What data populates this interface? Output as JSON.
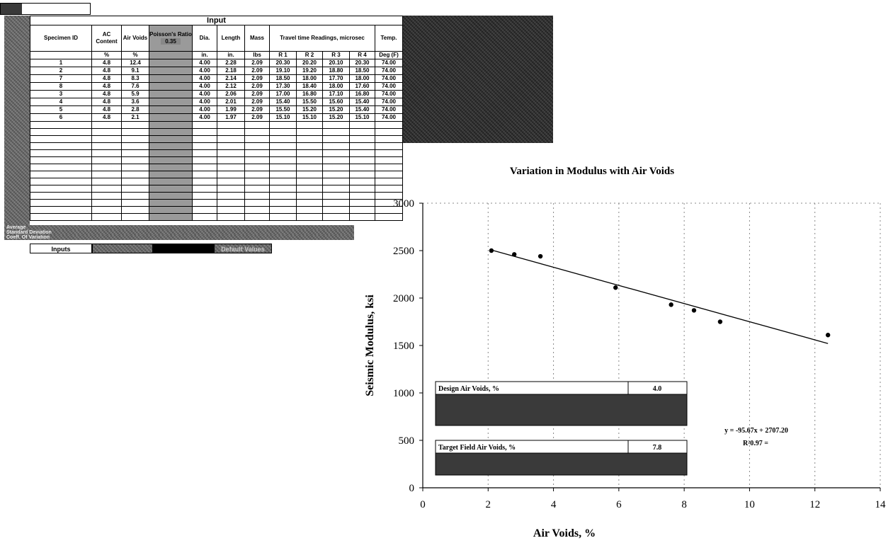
{
  "spreadsheet": {
    "input_title": "Input",
    "headers": {
      "specimen_id": "Specimen ID",
      "ac_content": "AC Content",
      "air_voids": "Air Voids",
      "poissons_ratio": "Poisson's Ratio",
      "poissons_value": "0.35",
      "dia": "Dia.",
      "length": "Length",
      "mass": "Mass",
      "travel_time": "Travel time Readings, microsec",
      "temp": "Temp."
    },
    "units": {
      "ac_content": "%",
      "air_voids": "%",
      "dia": "in.",
      "length": "in.",
      "mass": "lbs",
      "r1": "R 1",
      "r2": "R 2",
      "r3": "R 3",
      "r4": "R 4",
      "temp": "Deg (F)"
    },
    "rows": [
      [
        "1",
        "4.8",
        "12.4",
        "4.00",
        "2.28",
        "2.09",
        "20.30",
        "20.20",
        "20.10",
        "20.30",
        "74.00"
      ],
      [
        "2",
        "4.8",
        "9.1",
        "4.00",
        "2.18",
        "2.09",
        "19.10",
        "19.20",
        "18.80",
        "18.50",
        "74.00"
      ],
      [
        "7",
        "4.8",
        "8.3",
        "4.00",
        "2.14",
        "2.09",
        "18.50",
        "18.00",
        "17.70",
        "18.00",
        "74.00"
      ],
      [
        "8",
        "4.8",
        "7.6",
        "4.00",
        "2.12",
        "2.09",
        "17.30",
        "18.40",
        "18.00",
        "17.60",
        "74.00"
      ],
      [
        "3",
        "4.8",
        "5.9",
        "4.00",
        "2.06",
        "2.09",
        "17.00",
        "16.80",
        "17.10",
        "16.80",
        "74.00"
      ],
      [
        "4",
        "4.8",
        "3.6",
        "4.00",
        "2.01",
        "2.09",
        "15.40",
        "15.50",
        "15.60",
        "15.40",
        "74.00"
      ],
      [
        "5",
        "4.8",
        "2.8",
        "4.00",
        "1.99",
        "2.09",
        "15.50",
        "15.20",
        "15.20",
        "15.40",
        "74.00"
      ],
      [
        "6",
        "4.8",
        "2.1",
        "4.00",
        "1.97",
        "2.09",
        "15.10",
        "15.10",
        "15.20",
        "15.10",
        "74.00"
      ]
    ],
    "bottom_rows": [
      "Average",
      "Standard Deviation",
      "Coeff. Of Variation"
    ],
    "tabs": [
      "Inputs",
      "",
      "",
      "Default Values"
    ]
  },
  "chart_data": {
    "type": "scatter",
    "title": "Variation in Modulus with Air Voids",
    "xlabel": "Air Voids, %",
    "ylabel": "Seismic Modulus, ksi",
    "xlim": [
      0,
      14
    ],
    "ylim": [
      0,
      3000
    ],
    "xticks": [
      0,
      2,
      4,
      6,
      8,
      10,
      12,
      14
    ],
    "yticks": [
      0,
      500,
      1000,
      1500,
      2000,
      2500,
      3000
    ],
    "series": [
      {
        "x": [
          2.1,
          2.8,
          3.6,
          5.9,
          7.6,
          8.3,
          9.1,
          12.4
        ],
        "y": [
          2500,
          2460,
          2440,
          2110,
          1930,
          1870,
          1750,
          1610
        ]
      }
    ],
    "trendline": {
      "slope": -95.67,
      "intercept": 2707.2,
      "x_range": [
        2.1,
        12.4
      ],
      "equation": "y = -95.67x + 2707.20",
      "r2": "R²0.97 ="
    },
    "grid": "vertical dashed",
    "legend": "none",
    "boxes": [
      {
        "label": "Design Air Voids, %",
        "value": "4.0"
      },
      {
        "label": "Target Field Air Voids, %",
        "value": "7.8"
      }
    ]
  }
}
